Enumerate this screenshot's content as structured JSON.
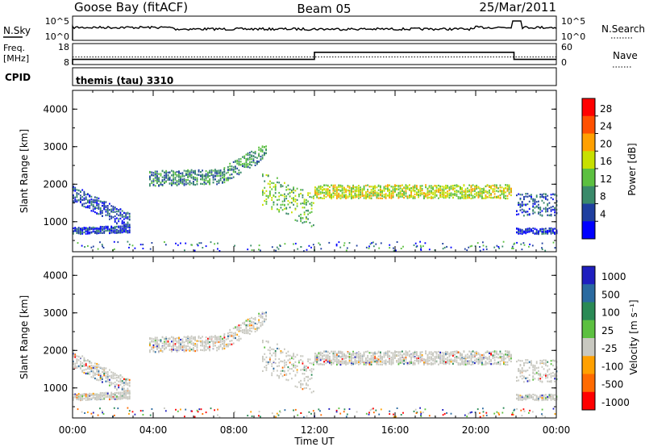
{
  "header": {
    "station": "Goose Bay (fitACF)",
    "beam": "Beam 05",
    "date": "25/Mar/2011"
  },
  "strip_panels": {
    "nsky": {
      "label": "N.Sky",
      "ticks": [
        "10^5",
        "10^0"
      ],
      "right_label": "N.Search",
      "right_ticks": [
        "10^5",
        "10^0"
      ]
    },
    "freq": {
      "label_line1": "Freq.",
      "label_line2": "[MHz]",
      "ticks": [
        "18",
        "8"
      ],
      "right_label": "Nave",
      "right_ticks": [
        "60",
        "0"
      ]
    },
    "cpid": {
      "label": "CPID",
      "value": "themis (tau) 3310"
    }
  },
  "power_panel": {
    "ylabel": "Slant Range [km]",
    "yticks": [
      "4000",
      "3000",
      "2000",
      "1000"
    ],
    "colorbar_label": "Power [dB]",
    "colorbar_ticks": [
      "28",
      "24",
      "20",
      "16",
      "12",
      "8",
      "4"
    ],
    "colors": [
      "#0000ff",
      "#1f3f9f",
      "#3a8a6a",
      "#5cc040",
      "#c8e000",
      "#ffa000",
      "#ff5000",
      "#ff0000"
    ]
  },
  "velocity_panel": {
    "ylabel": "Slant Range [km]",
    "yticks": [
      "4000",
      "3000",
      "2000",
      "1000"
    ],
    "colorbar_label": "Velocity [m s⁻¹]",
    "colorbar_ticks": [
      "1000",
      "500",
      "100",
      "25",
      "-25",
      "-100",
      "-500",
      "-1000"
    ],
    "colors": [
      "#1f1fbf",
      "#2a6aa0",
      "#2a8a55",
      "#5cc040",
      "#c8c8c0",
      "#ffa000",
      "#ff6a00",
      "#ff0000"
    ]
  },
  "x_axis": {
    "label": "Time UT",
    "ticks": [
      "00:00",
      "04:00",
      "08:00",
      "12:00",
      "16:00",
      "20:00",
      "00:00"
    ]
  },
  "chart_data": {
    "type": "heatmap",
    "title": "Goose Bay (fitACF)   Beam 05   25/Mar/2011",
    "xlabel": "Time UT",
    "ylabel": "Slant Range [km]",
    "xlim_hours": [
      0,
      24
    ],
    "ylim_km": [
      200,
      4500
    ],
    "scatter_bands": [
      {
        "name": "band-a",
        "t_start": 0.0,
        "t_end": 2.8,
        "r_start": 1750,
        "r_end": 1000,
        "width": 220,
        "density": 0.75,
        "power": 6,
        "velocity": -60
      },
      {
        "name": "band-b",
        "t_start": 0.0,
        "t_end": 2.8,
        "r_start": 760,
        "r_end": 800,
        "width": 90,
        "density": 0.75,
        "power": 5,
        "velocity": 0
      },
      {
        "name": "band-c",
        "t_start": 3.8,
        "t_end": 7.5,
        "r_start": 2150,
        "r_end": 2200,
        "width": 200,
        "density": 0.85,
        "power": 10,
        "velocity": 0
      },
      {
        "name": "band-d",
        "t_start": 7.5,
        "t_end": 9.6,
        "r_start": 2250,
        "r_end": 2900,
        "width": 220,
        "density": 0.7,
        "power": 11,
        "velocity": 0
      },
      {
        "name": "band-e",
        "t_start": 9.4,
        "t_end": 12.0,
        "r_start": 1900,
        "r_end": 1250,
        "width": 450,
        "density": 0.65,
        "power": 14,
        "velocity": 30
      },
      {
        "name": "band-f",
        "t_start": 12.0,
        "t_end": 21.8,
        "r_start": 1800,
        "r_end": 1800,
        "width": 180,
        "density": 0.9,
        "power": 17,
        "velocity": 0
      },
      {
        "name": "band-g",
        "t_start": 22.0,
        "t_end": 24.0,
        "r_start": 1450,
        "r_end": 1450,
        "width": 300,
        "density": 0.7,
        "power": 7,
        "velocity": 60
      },
      {
        "name": "band-h",
        "t_start": 22.0,
        "t_end": 24.0,
        "r_start": 750,
        "r_end": 750,
        "width": 80,
        "density": 0.6,
        "power": 4,
        "velocity": 0
      }
    ],
    "frequency_mhz": [
      {
        "t_start": 0,
        "t_end": 12,
        "value": 10
      },
      {
        "t_start": 12,
        "t_end": 21.9,
        "value": 14
      },
      {
        "t_start": 21.9,
        "t_end": 24,
        "value": 10
      }
    ],
    "nave": 20
  }
}
